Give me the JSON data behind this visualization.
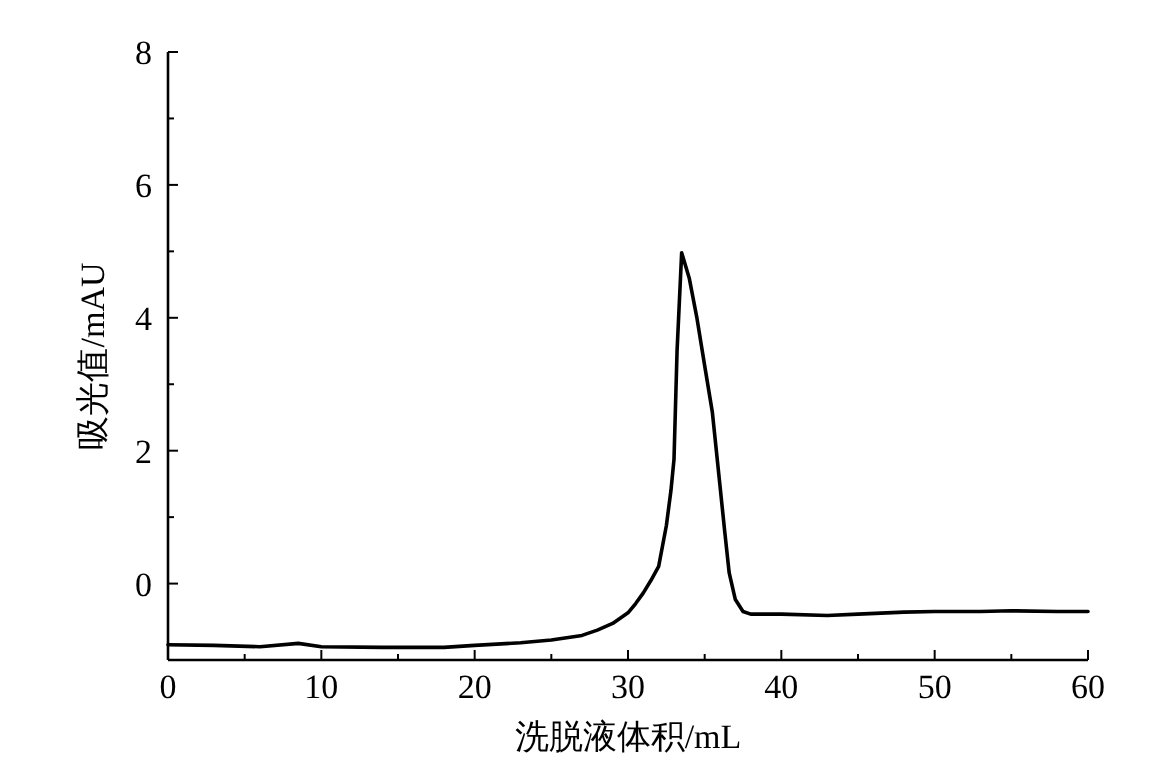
{
  "chart_data": {
    "type": "line",
    "xlabel": "洗脱液体积/mL",
    "ylabel": "吸光值/mAU",
    "xlim": [
      0,
      60
    ],
    "ylim": [
      -1.15,
      8
    ],
    "xticks": [
      0,
      {
        "value": 5,
        "label": null
      },
      10,
      {
        "value": 15,
        "label": null
      },
      20,
      {
        "value": 25,
        "label": null
      },
      30,
      {
        "value": 35,
        "label": null
      },
      40,
      {
        "value": 45,
        "label": null
      },
      50,
      {
        "value": 55,
        "label": null
      },
      60
    ],
    "yticks": [
      0,
      {
        "value": 1,
        "label": null
      },
      2,
      {
        "value": 3,
        "label": null
      },
      4,
      {
        "value": 5,
        "label": null
      },
      6,
      {
        "value": 7,
        "label": null
      },
      8
    ],
    "marker": "none",
    "line_style": "solid",
    "series": [
      {
        "color": "#000000",
        "x": [
          0,
          3,
          6,
          8.5,
          10,
          14,
          18,
          20,
          23,
          25,
          27,
          28,
          29,
          30,
          30.5,
          31,
          31.5,
          32,
          32.5,
          32.8,
          33,
          33.2,
          33.5,
          34,
          34.5,
          35,
          35.5,
          36,
          36.3,
          36.6,
          37,
          37.5,
          38,
          40,
          43,
          45,
          48,
          50,
          53,
          55,
          58,
          60
        ],
        "values": [
          -0.92,
          -0.93,
          -0.95,
          -0.9,
          -0.95,
          -0.96,
          -0.96,
          -0.93,
          -0.89,
          -0.85,
          -0.78,
          -0.7,
          -0.6,
          -0.44,
          -0.3,
          -0.14,
          0.05,
          0.26,
          0.87,
          1.4,
          1.87,
          3.5,
          4.98,
          4.59,
          3.99,
          3.28,
          2.58,
          1.47,
          0.8,
          0.16,
          -0.24,
          -0.42,
          -0.46,
          -0.46,
          -0.48,
          -0.46,
          -0.43,
          -0.42,
          -0.42,
          -0.41,
          -0.42,
          -0.42
        ]
      }
    ]
  }
}
